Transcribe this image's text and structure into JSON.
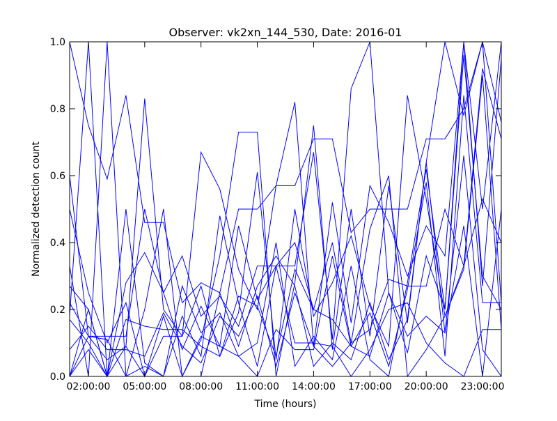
{
  "chart_data": {
    "type": "line",
    "title": "Observer: vk2xn_144_530, Date: 2016-01",
    "xlabel": "Time (hours)",
    "ylabel": "Normalized detection count",
    "xlim": [
      1,
      24
    ],
    "ylim": [
      0,
      1
    ],
    "x_ticks": [
      {
        "value": 2,
        "label": "02:00:00"
      },
      {
        "value": 5,
        "label": "05:00:00"
      },
      {
        "value": 8,
        "label": "08:00:00"
      },
      {
        "value": 11,
        "label": "11:00:00"
      },
      {
        "value": 14,
        "label": "14:00:00"
      },
      {
        "value": 17,
        "label": "17:00:00"
      },
      {
        "value": 20,
        "label": "20:00:00"
      },
      {
        "value": 23,
        "label": "23:00:00"
      }
    ],
    "y_ticks": [
      {
        "value": 0.0,
        "label": "0.0"
      },
      {
        "value": 0.2,
        "label": "0.2"
      },
      {
        "value": 0.4,
        "label": "0.4"
      },
      {
        "value": 0.6,
        "label": "0.6"
      },
      {
        "value": 0.8,
        "label": "0.8"
      },
      {
        "value": 1.0,
        "label": "1.0"
      }
    ],
    "grid": false,
    "legend": "none",
    "line_color": "#0000ff",
    "x": [
      1,
      2,
      3,
      4,
      5,
      6,
      7,
      8,
      9,
      10,
      11,
      12,
      13,
      14,
      15,
      16,
      17,
      18,
      19,
      20,
      21,
      22,
      23,
      24
    ],
    "series": [
      {
        "values": [
          1.0,
          0.75,
          0.59,
          0.84,
          0.46,
          0.46,
          0.22,
          0.28,
          0.25,
          0.5,
          0.5,
          0.57,
          0.57,
          0.71,
          0.71,
          0.43,
          0.5,
          0.5,
          0.5,
          0.71,
          0.71,
          0.8,
          1.0,
          0.76
        ]
      },
      {
        "values": [
          0.6,
          0.12,
          0.12,
          0.12,
          0.5,
          0.25,
          0.36,
          0.18,
          0.24,
          0.15,
          0.33,
          0.33,
          0.4,
          0.2,
          0.4,
          0.1,
          0.14,
          0.29,
          0.27,
          0.27,
          0.5,
          0.33,
          0.92,
          0.71
        ]
      },
      {
        "values": [
          0.18,
          1.0,
          0.0,
          0.09,
          0.83,
          0.2,
          0.12,
          0.67,
          0.56,
          0.32,
          0.2,
          0.57,
          0.82,
          0.09,
          0.52,
          0.16,
          0.57,
          0.46,
          0.3,
          0.45,
          0.36,
          1.0,
          0.5,
          1.0
        ]
      },
      {
        "values": [
          0.33,
          0.0,
          1.0,
          0.0,
          0.2,
          0.5,
          0.0,
          0.11,
          0.36,
          0.73,
          0.73,
          0.0,
          0.28,
          0.75,
          0.08,
          0.5,
          0.12,
          0.57,
          0.16,
          0.64,
          1.0,
          0.78,
          1.0,
          0.22
        ]
      },
      {
        "values": [
          0.0,
          0.2,
          0.0,
          0.28,
          0.37,
          0.25,
          0.08,
          0.21,
          0.09,
          0.45,
          0.23,
          0.33,
          0.33,
          0.67,
          0.11,
          0.86,
          1.0,
          0.25,
          0.07,
          0.36,
          0.2,
          0.96,
          0.3,
          0.2
        ]
      },
      {
        "values": [
          0.17,
          0.1,
          0.0,
          0.0,
          0.0,
          0.12,
          0.12,
          0.27,
          0.06,
          0.19,
          0.61,
          0.05,
          0.5,
          0.18,
          0.28,
          0.42,
          0.21,
          0.09,
          0.84,
          0.53,
          0.18,
          0.33,
          0.53,
          0.4
        ]
      },
      {
        "values": [
          0.5,
          0.25,
          0.1,
          0.22,
          0.0,
          0.18,
          0.0,
          0.12,
          0.09,
          0.06,
          0.0,
          0.14,
          0.08,
          0.08,
          0.36,
          0.09,
          0.19,
          0.03,
          0.26,
          0.58,
          0.06,
          0.84,
          0.22,
          0.22
        ]
      },
      {
        "values": [
          0.08,
          0.15,
          0.08,
          0.08,
          0.06,
          0.19,
          0.09,
          0.04,
          0.18,
          0.12,
          0.24,
          0.03,
          0.25,
          0.09,
          0.03,
          0.1,
          0.44,
          0.6,
          0.0,
          0.08,
          0.18,
          0.32,
          0.9,
          0.14
        ]
      },
      {
        "values": [
          0.0,
          0.08,
          0.0,
          0.17,
          0.15,
          0.14,
          0.14,
          0.09,
          0.06,
          0.24,
          0.21,
          0.06,
          0.32,
          0.2,
          0.17,
          0.09,
          0.06,
          0.25,
          0.12,
          0.18,
          0.13,
          0.66,
          0.08,
          0.0
        ]
      },
      {
        "values": [
          0.22,
          0.12,
          0.05,
          0.09,
          0.0,
          0.0,
          0.27,
          0.13,
          0.19,
          0.06,
          0.1,
          0.4,
          0.03,
          0.12,
          0.05,
          0.33,
          0.05,
          0.0,
          0.28,
          0.62,
          0.2,
          1.0,
          0.27,
          0.95
        ]
      },
      {
        "values": [
          0.27,
          0.2,
          0.0,
          0.5,
          0.04,
          0.0,
          0.0,
          0.0,
          0.25,
          0.09,
          0.27,
          0.36,
          0.27,
          0.03,
          0.1,
          0.05,
          0.22,
          0.05,
          0.17,
          0.64,
          0.13,
          0.45,
          0.0,
          0.5
        ]
      },
      {
        "values": [
          0.0,
          0.12,
          0.11,
          0.0,
          0.03,
          0.0,
          0.18,
          0.06,
          0.48,
          0.22,
          0.03,
          0.33,
          0.1,
          0.1,
          0.09,
          0.0,
          0.08,
          0.2,
          0.22,
          0.1,
          0.04,
          0.0,
          0.14,
          0.14
        ]
      }
    ]
  }
}
